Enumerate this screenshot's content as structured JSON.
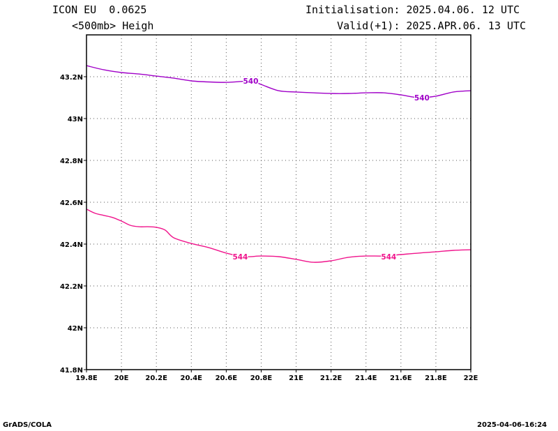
{
  "header": {
    "model": "ICON EU  0.0625",
    "field": "<500mb> Heigh",
    "init": "Initialisation: 2025.04.06. 12 UTC",
    "valid": "Valid(+1): 2025.APR.06. 13 UTC"
  },
  "footer": {
    "left": "GrADS/COLA",
    "right": "2025-04-06-16:24"
  },
  "chart_data": {
    "type": "line",
    "title": "",
    "xlim": [
      19.8,
      22.0
    ],
    "ylim": [
      41.8,
      43.4
    ],
    "x_ticks": [
      19.8,
      20.0,
      20.2,
      20.4,
      20.6,
      20.8,
      21.0,
      21.2,
      21.4,
      21.6,
      21.8,
      22.0
    ],
    "x_tick_labels": [
      "19.8E",
      "20E",
      "20.2E",
      "20.4E",
      "20.6E",
      "20.8E",
      "21E",
      "21.2E",
      "21.4E",
      "21.6E",
      "21.8E",
      "22E"
    ],
    "y_ticks": [
      41.8,
      42.0,
      42.2,
      42.4,
      42.6,
      42.8,
      43.0,
      43.2
    ],
    "y_tick_labels": [
      "41.8N",
      "42N",
      "42.2N",
      "42.4N",
      "42.6N",
      "42.8N",
      "43N",
      "43.2N"
    ],
    "grid": true,
    "series": [
      {
        "name": "540",
        "color": "#a000c8",
        "labels": [
          {
            "x": 20.74,
            "y": 43.18
          },
          {
            "x": 21.72,
            "y": 43.1
          }
        ],
        "x": [
          19.8,
          19.9,
          20.0,
          20.1,
          20.2,
          20.3,
          20.4,
          20.5,
          20.6,
          20.7,
          20.75,
          20.8,
          20.9,
          21.0,
          21.1,
          21.2,
          21.3,
          21.4,
          21.5,
          21.6,
          21.7,
          21.8,
          21.9,
          22.0
        ],
        "y": [
          43.253,
          43.233,
          43.22,
          43.213,
          43.203,
          43.193,
          43.18,
          43.175,
          43.173,
          43.178,
          43.178,
          43.163,
          43.133,
          43.127,
          43.123,
          43.12,
          43.12,
          43.123,
          43.123,
          43.113,
          43.1,
          43.107,
          43.127,
          43.133
        ]
      },
      {
        "name": "544",
        "color": "#f0148c",
        "labels": [
          {
            "x": 20.68,
            "y": 42.34
          },
          {
            "x": 21.53,
            "y": 42.34
          }
        ],
        "x": [
          19.8,
          19.85,
          19.9,
          19.95,
          20.0,
          20.05,
          20.1,
          20.15,
          20.2,
          20.25,
          20.3,
          20.4,
          20.5,
          20.6,
          20.7,
          20.8,
          20.9,
          21.0,
          21.1,
          21.2,
          21.3,
          21.4,
          21.5,
          21.6,
          21.7,
          21.8,
          21.9,
          22.0
        ],
        "y": [
          42.567,
          42.547,
          42.537,
          42.527,
          42.51,
          42.49,
          42.483,
          42.483,
          42.48,
          42.467,
          42.43,
          42.403,
          42.383,
          42.357,
          42.34,
          42.343,
          42.34,
          42.327,
          42.313,
          42.32,
          42.337,
          42.343,
          42.343,
          42.35,
          42.357,
          42.363,
          42.37,
          42.373
        ]
      }
    ]
  }
}
